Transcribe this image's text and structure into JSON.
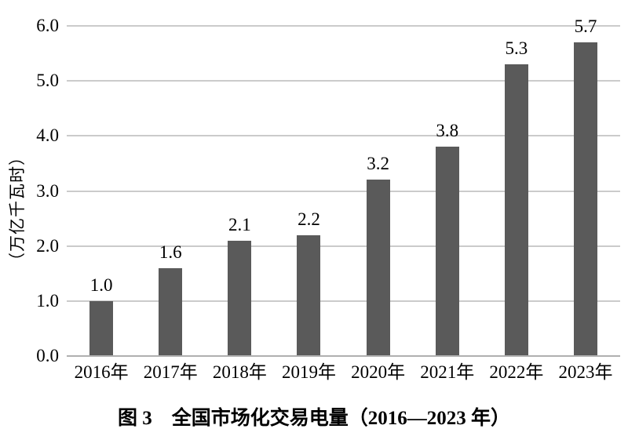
{
  "chart_data": {
    "type": "bar",
    "title": "图 3　全国市场化交易电量（2016—2023 年）",
    "ylabel": "（万亿千瓦时）",
    "xlabel": "",
    "categories": [
      "2016年",
      "2017年",
      "2018年",
      "2019年",
      "2020年",
      "2021年",
      "2022年",
      "2023年"
    ],
    "values": [
      1.0,
      1.6,
      2.1,
      2.2,
      3.2,
      3.8,
      5.3,
      5.7
    ],
    "value_labels": [
      "1.0",
      "1.6",
      "2.1",
      "2.2",
      "3.2",
      "3.8",
      "5.3",
      "5.7"
    ],
    "yticks": [
      "0.0",
      "1.0",
      "2.0",
      "3.0",
      "4.0",
      "5.0",
      "6.0"
    ],
    "ylim": [
      0,
      6.0
    ],
    "grid": "horizontal-only",
    "legend_position": "none",
    "bar_color": "#5a5a5a",
    "grid_color": "#cbcbcb",
    "baseline_color": "#b0b0b0",
    "text_color": "#000000",
    "background_color": "#ffffff"
  }
}
